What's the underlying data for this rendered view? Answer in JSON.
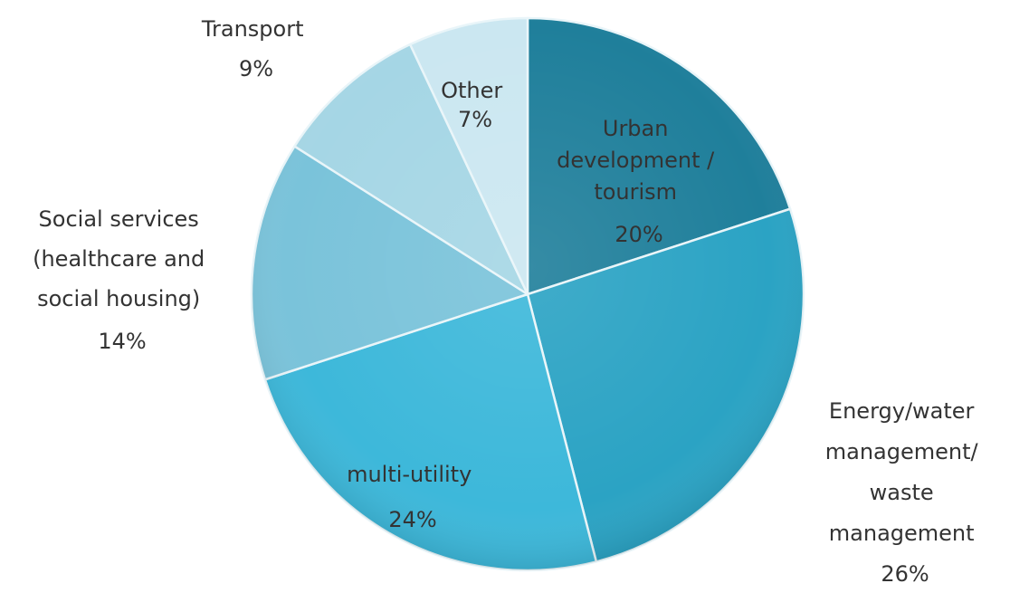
{
  "chart_data": {
    "type": "pie",
    "title": "",
    "categories": [
      "Urban development / tourism",
      "Energy/water management/ waste management",
      "multi-utility",
      "Social services (healthcare and social housing)",
      "Transport",
      "Other"
    ],
    "values": [
      20,
      26,
      24,
      14,
      9,
      7
    ],
    "unit": "%",
    "legend": "none",
    "slices": [
      {
        "label_lines": [
          "Urban",
          "development /",
          "tourism"
        ],
        "value_label": "20%",
        "color": "#1f7f9b"
      },
      {
        "label_lines": [
          "Energy/water",
          "management/",
          "waste",
          "management"
        ],
        "value_label": "26%",
        "color": "#2ba3c4"
      },
      {
        "label_lines": [
          "multi-utility"
        ],
        "value_label": "24%",
        "color": "#3db8da"
      },
      {
        "label_lines": [
          "Social services",
          "(healthcare and",
          "social housing)"
        ],
        "value_label": "14%",
        "color": "#7ac3da"
      },
      {
        "label_lines": [
          "Transport"
        ],
        "value_label": "9%",
        "color": "#a5d6e5"
      },
      {
        "label_lines": [
          "Other"
        ],
        "value_label": "7%",
        "color": "#cbe7f1"
      }
    ]
  }
}
